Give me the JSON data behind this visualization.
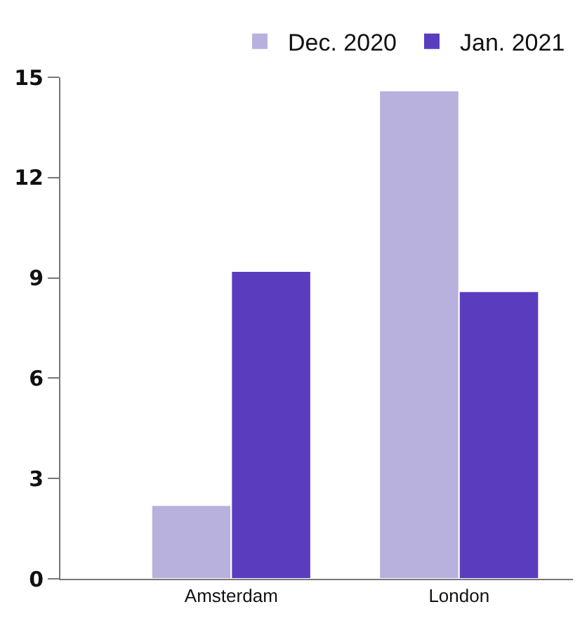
{
  "chart_data": {
    "type": "bar",
    "categories": [
      "Amsterdam",
      "London"
    ],
    "series": [
      {
        "name": "Dec. 2020",
        "color": "#b8b0dd",
        "values": [
          2.2,
          14.6
        ]
      },
      {
        "name": "Jan. 2021",
        "color": "#5a3dbf",
        "values": [
          9.2,
          8.6
        ]
      }
    ],
    "ylim": [
      0,
      15
    ],
    "yticks": [
      0,
      3,
      6,
      9,
      12,
      15
    ],
    "legend": "top right"
  }
}
